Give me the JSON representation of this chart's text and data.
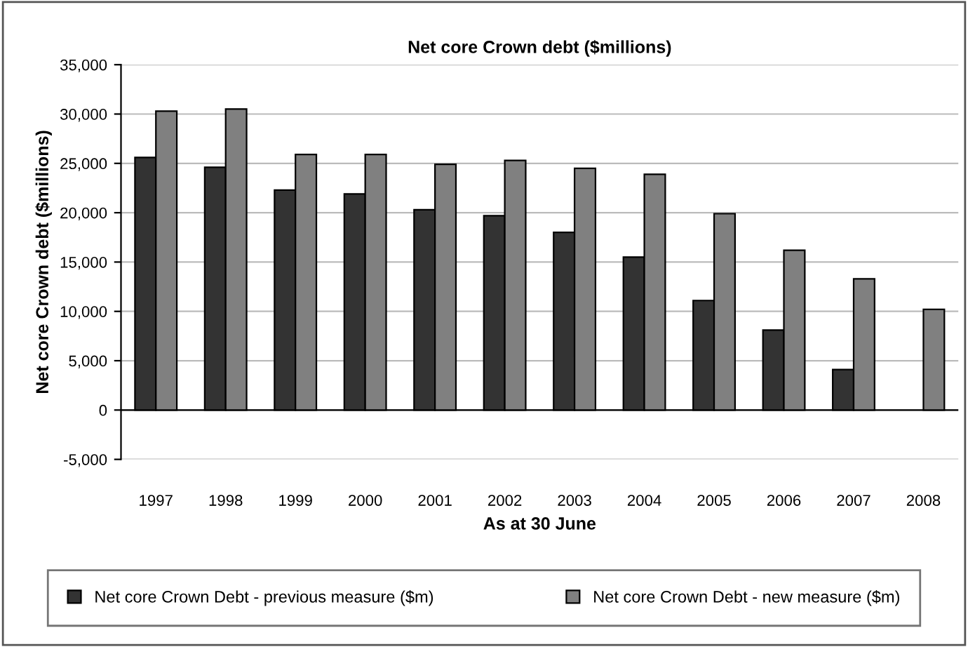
{
  "chart_data": {
    "type": "bar",
    "title": "Net core Crown debt ($millions)",
    "xlabel": "As at 30 June",
    "ylabel": "Net core Crown debt ($millions)",
    "categories": [
      "1997",
      "1998",
      "1999",
      "2000",
      "2001",
      "2002",
      "2003",
      "2004",
      "2005",
      "2006",
      "2007",
      "2008"
    ],
    "series": [
      {
        "name": "Net core Crown Debt - previous measure ($m)",
        "color": "#333333",
        "values": [
          25600,
          24600,
          22300,
          21900,
          20300,
          19700,
          18000,
          15500,
          11100,
          8100,
          4100,
          null
        ]
      },
      {
        "name": "Net core Crown Debt - new measure ($m)",
        "color": "#808080",
        "values": [
          30300,
          30500,
          25900,
          25900,
          24900,
          25300,
          24500,
          23900,
          19900,
          16200,
          13300,
          10200
        ]
      }
    ],
    "ylim": [
      -5000,
      35000
    ],
    "yticks": [
      {
        "value": -5000,
        "label": "-5,000"
      },
      {
        "value": 0,
        "label": "0"
      },
      {
        "value": 5000,
        "label": "5,000"
      },
      {
        "value": 10000,
        "label": "10,000"
      },
      {
        "value": 15000,
        "label": "15,000"
      },
      {
        "value": 20000,
        "label": "20,000"
      },
      {
        "value": 25000,
        "label": "25,000"
      },
      {
        "value": 30000,
        "label": "30,000"
      },
      {
        "value": 35000,
        "label": "35,000"
      }
    ],
    "grid": "y",
    "legend": "bottom"
  }
}
